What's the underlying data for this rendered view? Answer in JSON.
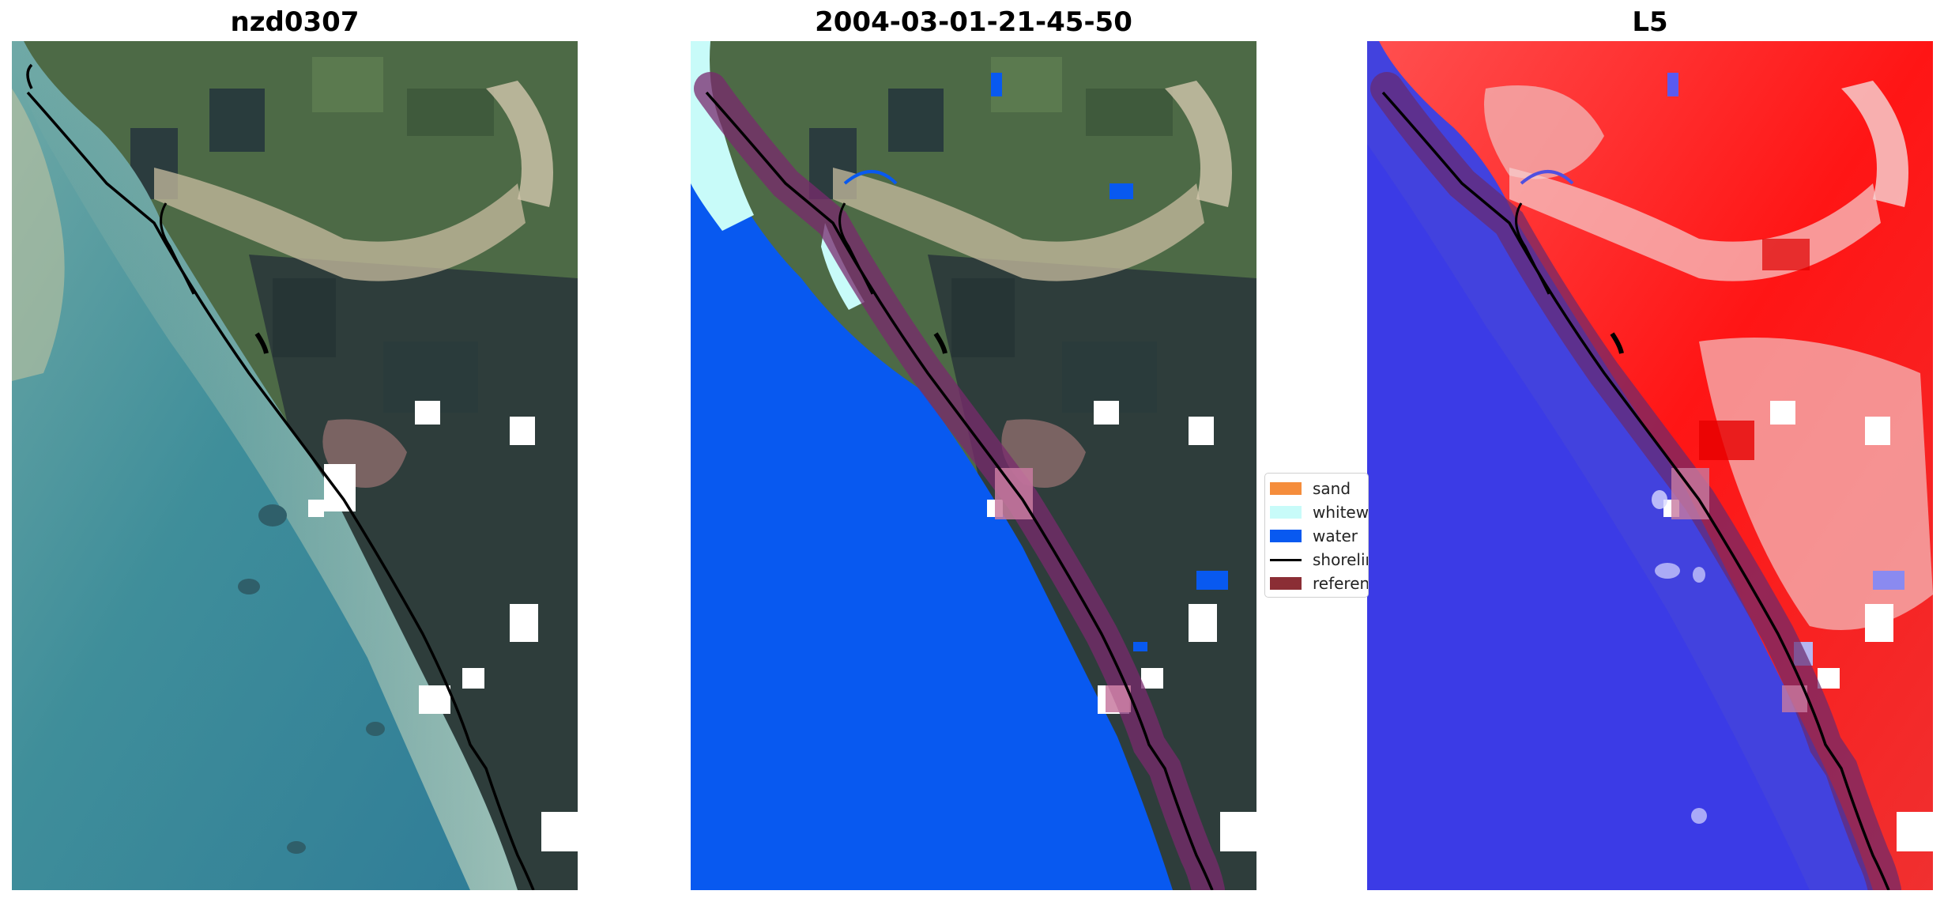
{
  "panels": [
    {
      "title": "nzd0307"
    },
    {
      "title": "2004-03-01-21-45-50"
    },
    {
      "title": "L5"
    }
  ],
  "legend": {
    "items": [
      {
        "label": "sand",
        "color": "#f58d3c",
        "icon": "filled-patch"
      },
      {
        "label": "whitewater",
        "color": "#c8fbf9",
        "icon": "filled-patch"
      },
      {
        "label": "water",
        "color": "#0859f0",
        "icon": "filled-patch"
      },
      {
        "label": "shoreline",
        "color": "#000000",
        "icon": "line"
      },
      {
        "label": "reference shoreline buffer",
        "color": "#8b2e35",
        "icon": "filled-patch"
      }
    ]
  },
  "colors": {
    "land_green": "#4c6a45",
    "forest_dark": "#2d3b3a",
    "ocean_teal": "#3d8f95",
    "sand_light": "#d9d6b8",
    "classified_water": "#0859f0",
    "whitewater": "#c8fbf9",
    "buffer_purple": "#6a2a6c",
    "index_red": "#ff1a1a",
    "index_blue": "#3a3ae8",
    "cloud_mask": "#ffffff"
  }
}
